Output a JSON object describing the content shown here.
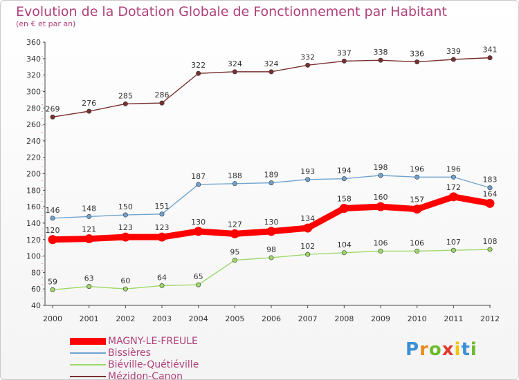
{
  "title": "Evolution de la Dotation Globale de Fonctionnement par Habitant",
  "subtitle": "(en € et par an)",
  "logo": {
    "text": "Proxiti",
    "letter_colors": [
      "#3a8fd6",
      "#e98b1e",
      "#6fba2c",
      "#e03a2e",
      "#f2c300",
      "#3a8fd6",
      "#6fba2c"
    ]
  },
  "chart_data": {
    "type": "line",
    "title": "Evolution de la Dotation Globale de Fonctionnement par Habitant",
    "ylabel": "",
    "xlabel": "",
    "x": [
      "2000",
      "2001",
      "2002",
      "2003",
      "2004",
      "2005",
      "2006",
      "2007",
      "2008",
      "2009",
      "2010",
      "2011",
      "2012"
    ],
    "ylim": [
      40,
      360
    ],
    "yticks": [
      40,
      60,
      80,
      100,
      120,
      140,
      160,
      180,
      200,
      220,
      240,
      260,
      280,
      300,
      320,
      340,
      360
    ],
    "grid": false,
    "legend": "bottom-left",
    "series": [
      {
        "name": "MAGNY-LE-FREULE",
        "color": "#ff0000",
        "emphasis": true,
        "values": [
          120,
          121,
          123,
          123,
          130,
          127,
          130,
          134,
          158,
          160,
          157,
          172,
          164
        ]
      },
      {
        "name": "Bissières",
        "color": "#6fa3cf",
        "emphasis": false,
        "values": [
          146,
          148,
          150,
          151,
          187,
          188,
          189,
          193,
          194,
          198,
          196,
          196,
          183
        ]
      },
      {
        "name": "Biéville-Quétiéville",
        "color": "#9ed86a",
        "emphasis": false,
        "values": [
          59,
          63,
          60,
          64,
          65,
          95,
          98,
          102,
          104,
          106,
          106,
          107,
          108
        ]
      },
      {
        "name": "Mézidon-Canon",
        "color": "#7a3030",
        "emphasis": false,
        "values": [
          269,
          276,
          285,
          286,
          322,
          324,
          324,
          332,
          337,
          338,
          336,
          339,
          341
        ]
      }
    ]
  }
}
